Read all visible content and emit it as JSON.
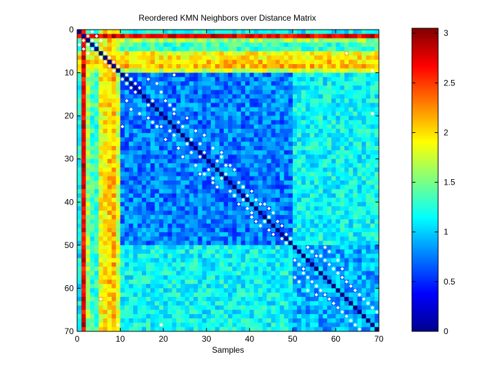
{
  "chart_data": [
    {
      "type": "heatmap",
      "title": "Reordered KMN Neighbors over Distance Matrix",
      "xlabel": "Samples",
      "ylabel": "",
      "n_samples": 70,
      "xlim": [
        0,
        70
      ],
      "ylim": [
        70,
        0
      ],
      "x_ticks": [
        0,
        10,
        20,
        30,
        40,
        50,
        60,
        70
      ],
      "y_ticks": [
        0,
        10,
        20,
        30,
        40,
        50,
        60,
        70
      ],
      "colormap": "jet",
      "color_range": [
        0,
        3.05
      ],
      "diagonal_value": 0,
      "cluster_blocks": [
        {
          "start": 10,
          "end": 49,
          "within_mean": 0.75
        },
        {
          "start": 50,
          "end": 69,
          "within_mean": 0.9
        }
      ],
      "background_mean": 1.15,
      "row_profiles": [
        {
          "index": 1,
          "mean": 2.75,
          "note": "red band"
        },
        {
          "index": 2,
          "mean": 1.6
        },
        {
          "index": 3,
          "mean": 1.3
        },
        {
          "index": 4,
          "mean": 1.3
        },
        {
          "index": 5,
          "mean": 1.9,
          "note": "yellow band"
        },
        {
          "index": 6,
          "mean": 1.95,
          "note": "yellow band"
        },
        {
          "index": 7,
          "mean": 2.05,
          "note": "orange band"
        },
        {
          "index": 8,
          "mean": 2.1,
          "note": "orange band"
        },
        {
          "index": 9,
          "mean": 1.75
        }
      ],
      "neighbor_marker": "white diamond",
      "neighbor_pairs": [
        [
          0,
          3
        ],
        [
          1,
          2
        ],
        [
          1,
          4
        ],
        [
          2,
          3
        ],
        [
          3,
          4
        ],
        [
          2,
          5
        ],
        [
          5,
          6
        ],
        [
          6,
          7
        ],
        [
          7,
          8
        ],
        [
          8,
          9
        ],
        [
          10,
          11
        ],
        [
          11,
          12
        ],
        [
          12,
          13
        ],
        [
          13,
          14
        ],
        [
          11,
          16
        ],
        [
          12,
          18
        ],
        [
          16,
          17
        ],
        [
          16,
          20
        ],
        [
          18,
          22
        ],
        [
          19,
          22
        ],
        [
          20,
          25
        ],
        [
          21,
          23
        ],
        [
          22,
          24
        ],
        [
          25,
          26
        ],
        [
          26,
          28
        ],
        [
          27,
          31
        ],
        [
          28,
          29
        ],
        [
          29,
          33
        ],
        [
          30,
          32
        ],
        [
          31,
          34
        ],
        [
          31,
          35
        ],
        [
          32,
          36
        ],
        [
          33,
          34
        ],
        [
          35,
          37
        ],
        [
          36,
          38
        ],
        [
          37,
          40
        ],
        [
          38,
          39
        ],
        [
          39,
          41
        ],
        [
          40,
          42
        ],
        [
          40,
          43
        ],
        [
          41,
          44
        ],
        [
          42,
          45
        ],
        [
          43,
          44
        ],
        [
          44,
          46
        ],
        [
          45,
          47
        ],
        [
          28,
          33
        ],
        [
          24,
          29
        ],
        [
          17,
          21
        ],
        [
          14,
          19
        ],
        [
          23,
          27
        ],
        [
          50,
          53
        ],
        [
          51,
          54
        ],
        [
          52,
          55
        ],
        [
          52,
          56
        ],
        [
          53,
          57
        ],
        [
          54,
          58
        ],
        [
          55,
          59
        ],
        [
          56,
          60
        ],
        [
          57,
          61
        ],
        [
          58,
          62
        ],
        [
          59,
          63
        ],
        [
          60,
          64
        ],
        [
          61,
          65
        ],
        [
          62,
          66
        ],
        [
          63,
          67
        ],
        [
          64,
          68
        ],
        [
          65,
          69
        ],
        [
          50,
          57
        ],
        [
          51,
          58
        ],
        [
          53,
          60
        ],
        [
          55,
          61
        ],
        [
          47,
          48
        ],
        [
          48,
          49
        ],
        [
          10,
          22
        ],
        [
          9,
          68
        ],
        [
          5,
          62
        ],
        [
          19,
          68
        ]
      ],
      "colorbar": {
        "ticks": [
          0,
          0.5,
          1,
          1.5,
          2,
          2.5,
          3
        ],
        "tick_labels": [
          "0",
          "0.5",
          "1",
          "1.5",
          "2",
          "2.5",
          "3"
        ],
        "range": [
          0,
          3.05
        ]
      }
    }
  ]
}
